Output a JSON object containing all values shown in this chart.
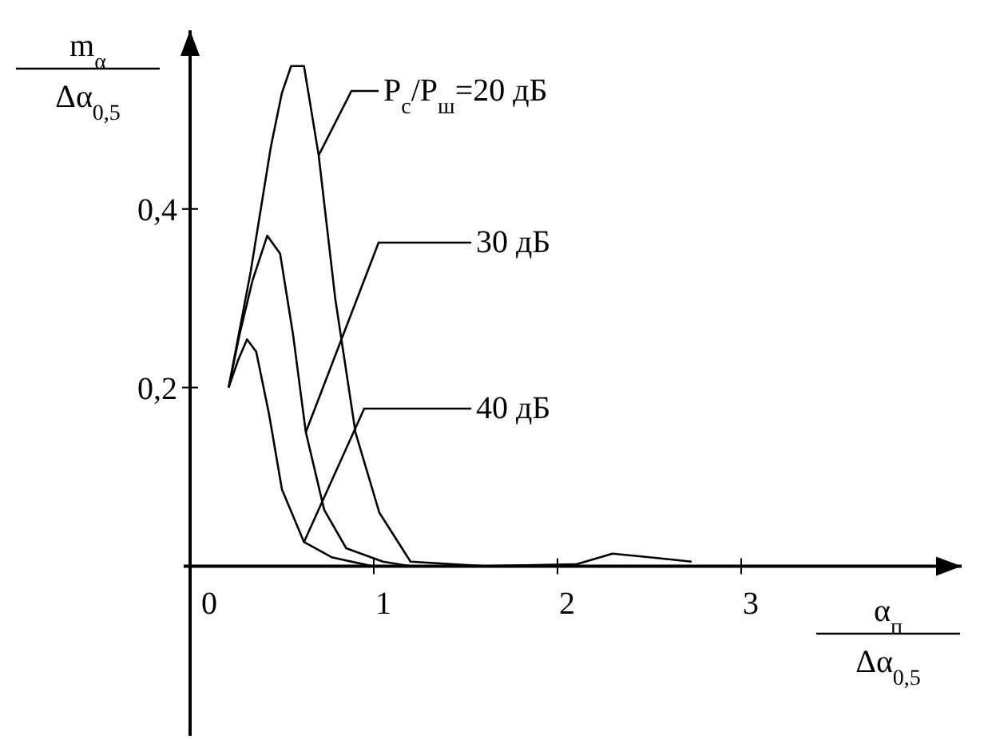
{
  "chart_data": {
    "type": "line",
    "ylabel": "m$_{α}$\nΔα$_{0,5}$",
    "xlabel": "α$_{п}$\nΔα$_{0,5}$",
    "xlim": [
      0,
      4.2
    ],
    "ylim": [
      -0.19,
      0.6
    ],
    "xticks": [
      0,
      1,
      2,
      3
    ],
    "yticks": [
      {
        "value": 0.2,
        "label": "0,2"
      },
      {
        "value": 0.4,
        "label": "0,4"
      }
    ],
    "series": [
      {
        "name": "P$_{с}$/P$_{ш}$=20 дБ",
        "color": "#000000",
        "x": [
          0.21,
          0.33,
          0.44,
          0.5,
          0.55,
          0.62,
          0.7,
          0.79,
          0.9,
          1.03,
          1.2,
          1.6,
          2.1,
          2.3,
          2.5,
          2.73
        ],
        "values": [
          0.2,
          0.33,
          0.47,
          0.53,
          0.56,
          0.56,
          0.46,
          0.3,
          0.15,
          0.06,
          0.005,
          0,
          0.002,
          0.014,
          0.01,
          0.005
        ]
      },
      {
        "name": "30 дБ",
        "color": "#000000",
        "x": [
          0.21,
          0.27,
          0.34,
          0.42,
          0.49,
          0.56,
          0.63,
          0.73,
          0.85,
          1.05,
          1.2
        ],
        "values": [
          0.2,
          0.26,
          0.32,
          0.37,
          0.35,
          0.26,
          0.15,
          0.063,
          0.02,
          0.005,
          0
        ]
      },
      {
        "name": "40 дБ",
        "color": "#000000",
        "x": [
          0.21,
          0.26,
          0.31,
          0.36,
          0.43,
          0.5,
          0.62,
          0.77,
          0.99
        ],
        "values": [
          0.2,
          0.23,
          0.254,
          0.24,
          0.17,
          0.086,
          0.027,
          0.01,
          0
        ]
      }
    ]
  }
}
